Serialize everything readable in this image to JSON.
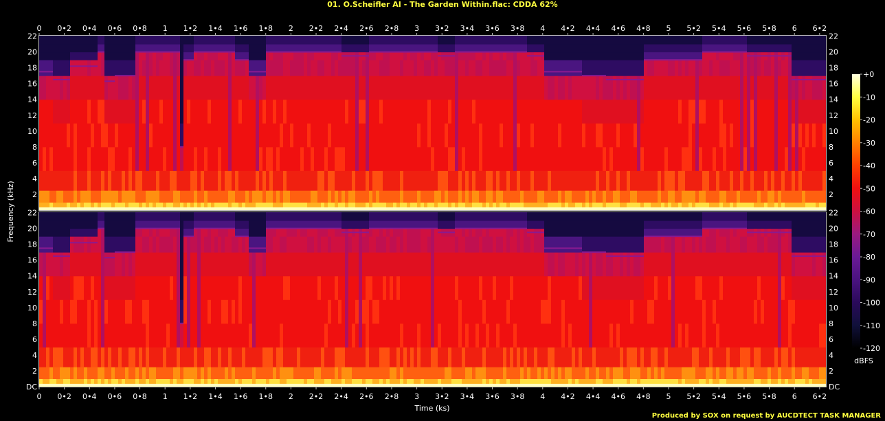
{
  "title": "01. O.Scheifler AI - The Garden Within.flac: CDDA 62%",
  "footer": "Produced by SOX on request by AUCDTECT TASK MANAGER",
  "chart_data": {
    "type": "heatmap",
    "title": "01. O.Scheifler AI - The Garden Within.flac: CDDA 62%",
    "xlabel": "Time (ks)",
    "ylabel": "Frequency (kHz)",
    "xlim": [
      0,
      6.25
    ],
    "ylim": [
      0,
      22.05
    ],
    "x_ticks": [
      "0",
      "0•2",
      "0•4",
      "0•6",
      "0•8",
      "1",
      "1•2",
      "1•4",
      "1•6",
      "1•8",
      "2",
      "2•2",
      "2•4",
      "2•6",
      "2•8",
      "3",
      "3•2",
      "3•4",
      "3•6",
      "3•8",
      "4",
      "4•2",
      "4•4",
      "4•6",
      "4•8",
      "5",
      "5•2",
      "5•4",
      "5•6",
      "5•8",
      "6",
      "6•2"
    ],
    "x_tick_values": [
      0,
      0.2,
      0.4,
      0.6,
      0.8,
      1.0,
      1.2,
      1.4,
      1.6,
      1.8,
      2.0,
      2.2,
      2.4,
      2.6,
      2.8,
      3.0,
      3.2,
      3.4,
      3.6,
      3.8,
      4.0,
      4.2,
      4.4,
      4.6,
      4.8,
      5.0,
      5.2,
      5.4,
      5.6,
      5.8,
      6.0,
      6.2
    ],
    "y_ticks": [
      "DC",
      "2",
      "4",
      "6",
      "8",
      "10",
      "12",
      "14",
      "16",
      "18",
      "20",
      "22"
    ],
    "y_tick_values": [
      0,
      2,
      4,
      6,
      8,
      10,
      12,
      14,
      16,
      18,
      20,
      22
    ],
    "channels": 2,
    "colorbar": {
      "label": "dBFS",
      "ticks": [
        "+0",
        "-10",
        "-20",
        "-30",
        "-40",
        "-50",
        "-60",
        "-70",
        "-80",
        "-90",
        "-100",
        "-110",
        "-120"
      ],
      "tick_values": [
        0,
        -10,
        -20,
        -30,
        -40,
        -50,
        -60,
        -70,
        -80,
        -90,
        -100,
        -110,
        -120
      ],
      "range": [
        -120,
        0
      ]
    },
    "colormap": [
      "#000000",
      "#10103a",
      "#2a0a5a",
      "#4a1380",
      "#6a1a96",
      "#9a1a80",
      "#cc1040",
      "#f01010",
      "#ff4000",
      "#ff8000",
      "#ffc000",
      "#ffff40",
      "#ffffe0"
    ],
    "cutoff_segments_kHz": [
      {
        "t": [
          0.0,
          0.1
        ],
        "cutoff": 17.5
      },
      {
        "t": [
          0.1,
          0.22
        ],
        "cutoff": 16.5
      },
      {
        "t": [
          0.22,
          0.44
        ],
        "cutoff": 18.2
      },
      {
        "t": [
          0.44,
          0.5
        ],
        "cutoff": 20
      },
      {
        "t": [
          0.5,
          0.6
        ],
        "cutoff": 16.3
      },
      {
        "t": [
          0.6,
          0.75
        ],
        "cutoff": 17
      },
      {
        "t": [
          0.75,
          1.1
        ],
        "cutoff": 20
      },
      {
        "t": [
          1.1,
          1.12
        ],
        "cutoff": 8
      },
      {
        "t": [
          1.12,
          1.22
        ],
        "cutoff": 19
      },
      {
        "t": [
          1.22,
          1.55
        ],
        "cutoff": 20
      },
      {
        "t": [
          1.55,
          1.65
        ],
        "cutoff": 19
      },
      {
        "t": [
          1.65,
          1.8
        ],
        "cutoff": 17.5
      },
      {
        "t": [
          1.8,
          2.0
        ],
        "cutoff": 20
      },
      {
        "t": [
          2.0,
          2.4
        ],
        "cutoff": 20
      },
      {
        "t": [
          2.4,
          2.6
        ],
        "cutoff": 19.5
      },
      {
        "t": [
          2.6,
          3.15
        ],
        "cutoff": 20
      },
      {
        "t": [
          3.15,
          3.3
        ],
        "cutoff": 19.5
      },
      {
        "t": [
          3.3,
          3.85
        ],
        "cutoff": 20
      },
      {
        "t": [
          3.85,
          4.0
        ],
        "cutoff": 19.5
      },
      {
        "t": [
          4.0,
          4.3
        ],
        "cutoff": 17.5
      },
      {
        "t": [
          4.3,
          4.5
        ],
        "cutoff": 17
      },
      {
        "t": [
          4.5,
          4.8
        ],
        "cutoff": 16.5
      },
      {
        "t": [
          4.8,
          5.25
        ],
        "cutoff": 19
      },
      {
        "t": [
          5.25,
          5.6
        ],
        "cutoff": 20
      },
      {
        "t": [
          5.6,
          5.95
        ],
        "cutoff": 19.5
      },
      {
        "t": [
          5.95,
          6.25
        ],
        "cutoff": 16.5
      }
    ]
  }
}
